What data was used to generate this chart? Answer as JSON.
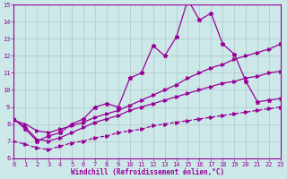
{
  "x": [
    0,
    1,
    2,
    3,
    4,
    5,
    6,
    7,
    8,
    9,
    10,
    11,
    12,
    13,
    14,
    15,
    16,
    17,
    18,
    19,
    20,
    21,
    22,
    23
  ],
  "line1_jagged": [
    8.3,
    7.7,
    7.0,
    7.3,
    7.5,
    8.0,
    8.3,
    9.0,
    9.2,
    9.0,
    10.7,
    11.0,
    12.6,
    12.0,
    13.1,
    15.3,
    14.1,
    14.5,
    12.7,
    12.1,
    10.5,
    9.3,
    9.4,
    9.5
  ],
  "line2_smooth": [
    8.2,
    8.0,
    7.6,
    7.5,
    7.7,
    7.9,
    8.1,
    8.4,
    8.6,
    8.8,
    9.1,
    9.4,
    9.7,
    10.0,
    10.3,
    10.7,
    11.0,
    11.3,
    11.5,
    11.8,
    12.0,
    12.2,
    12.4,
    12.7
  ],
  "line3_smooth": [
    8.3,
    7.8,
    7.1,
    7.0,
    7.2,
    7.5,
    7.8,
    8.1,
    8.3,
    8.5,
    8.8,
    9.0,
    9.2,
    9.4,
    9.6,
    9.8,
    10.0,
    10.2,
    10.4,
    10.5,
    10.7,
    10.8,
    11.0,
    11.1
  ],
  "line4_smooth": [
    7.0,
    6.8,
    6.6,
    6.5,
    6.7,
    6.9,
    7.0,
    7.2,
    7.3,
    7.5,
    7.6,
    7.7,
    7.9,
    8.0,
    8.1,
    8.2,
    8.3,
    8.4,
    8.5,
    8.6,
    8.7,
    8.8,
    8.9,
    9.0
  ],
  "line_color": "#990099",
  "bg_color": "#cce8e8",
  "grid_color": "#b0c8c8",
  "xlabel": "Windchill (Refroidissement éolien,°C)",
  "ylim": [
    6,
    15
  ],
  "xlim": [
    0,
    23
  ],
  "yticks": [
    6,
    7,
    8,
    9,
    10,
    11,
    12,
    13,
    14,
    15
  ],
  "xticks": [
    0,
    1,
    2,
    3,
    4,
    5,
    6,
    7,
    8,
    9,
    10,
    11,
    12,
    13,
    14,
    15,
    16,
    17,
    18,
    19,
    20,
    21,
    22,
    23
  ]
}
